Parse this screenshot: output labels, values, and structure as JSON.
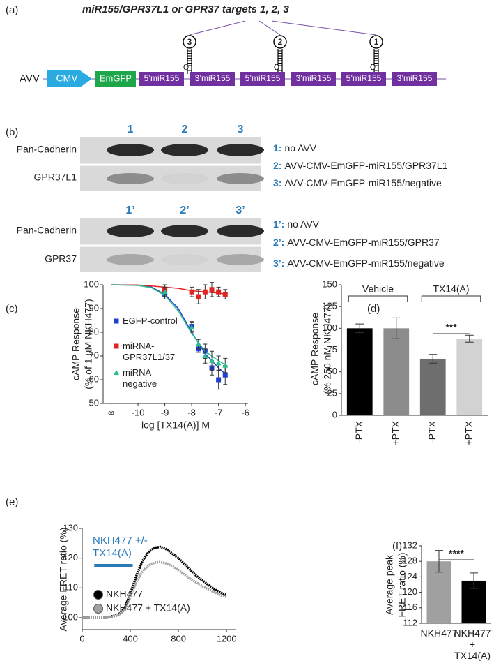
{
  "panel_labels": [
    "(a)",
    "(b)",
    "(c)",
    "(d)",
    "(e)",
    "(f)"
  ],
  "construct": {
    "title": "miR155/GPR37L1 or GPR37 targets 1, 2, 3",
    "vector": "AVV",
    "promoter": "CMV",
    "reporter": "EmGFP",
    "segments": [
      "5’miR155",
      "3’miR155",
      "5’miR155",
      "3’miR155",
      "5’miR155",
      "3’miR155"
    ],
    "targets": [
      "3",
      "2",
      "1"
    ]
  },
  "blot": {
    "top": {
      "lanes": [
        "1",
        "2",
        "3"
      ],
      "rows": [
        "Pan-Cadherin",
        "GPR37L1"
      ]
    },
    "bottom": {
      "lanes": [
        "1’",
        "2’",
        "3’"
      ],
      "rows": [
        "Pan-Cadherin",
        "GPR37"
      ]
    },
    "legend": [
      {
        "key": "1:",
        "text": "no AVV"
      },
      {
        "key": "2:",
        "text": "AVV-CMV-EmGFP-miR155/GPR37L1"
      },
      {
        "key": "3:",
        "text": "AVV-CMV-EmGFP-miR155/negative"
      },
      {
        "key": "1’:",
        "text": "no AVV"
      },
      {
        "key": "2’:",
        "text": "AVV-CMV-EmGFP-miR155/GPR37"
      },
      {
        "key": "3’:",
        "text": "AVV-CMV-EmGFP-miR155/negative"
      }
    ]
  },
  "chart_data": [
    {
      "type": "scatter",
      "y_label": [
        "cAMP Response",
        "(% of 1 µM NKH477)"
      ],
      "x_label": "log [TX14(A)] M",
      "xlim": [
        -11.3,
        -5.9
      ],
      "xticks": [
        {
          "value": -11,
          "label": "∞"
        },
        -10,
        -9,
        -8,
        -7,
        -6
      ],
      "ylim": [
        50,
        100
      ],
      "yticks": [
        50,
        60,
        70,
        80,
        90,
        100
      ],
      "x": [
        -9,
        -8,
        -7.75,
        -7.5,
        -7.25,
        -7,
        -6.75
      ],
      "series": [
        {
          "name": "EGFP-control",
          "color": "#1f3fd0",
          "marker": "square",
          "values": [
            96,
            82.5,
            73,
            72,
            65,
            60,
            62
          ],
          "errors": [
            2,
            2,
            1.5,
            3,
            3,
            4,
            4
          ],
          "fit": {
            "x": [
              -11,
              -10,
              -9.5,
              -9,
              -8.5,
              -8,
              -7.5,
              -7,
              -6.7
            ],
            "values": [
              100,
              99.8,
              99,
              96,
              90,
              80,
              71,
              65,
              62
            ]
          }
        },
        {
          "name": "miRNA-GPR37L1/37",
          "color": "#e02424",
          "marker": "square",
          "values": [
            98,
            97,
            95,
            97,
            98,
            97,
            96
          ],
          "errors": [
            2,
            2,
            3,
            3,
            3,
            2,
            2
          ],
          "fit": {
            "x": [
              -11,
              -10,
              -9.5,
              -9,
              -8.5,
              -8,
              -7.5,
              -7,
              -6.7
            ],
            "values": [
              100,
              99.9,
              99.5,
              99,
              98.5,
              97.5,
              97,
              96.5,
              96
            ]
          }
        },
        {
          "name": "miRNA-negative",
          "color": "#2bbf8c",
          "marker": "triangle",
          "values": [
            97,
            82,
            75,
            70,
            68,
            67,
            66
          ],
          "errors": [
            2,
            2,
            2,
            3,
            4,
            3,
            3
          ],
          "fit": {
            "x": [
              -11,
              -10,
              -9.5,
              -9,
              -8.5,
              -8,
              -7.5,
              -7,
              -6.7
            ],
            "values": [
              100,
              99.7,
              98.8,
              95.5,
              89,
              79.5,
              72,
              68,
              66
            ]
          }
        }
      ]
    },
    {
      "type": "bar",
      "y_label": [
        "cAMP Response",
        "(% 250 nM NKH477)"
      ],
      "ylim": [
        0,
        150
      ],
      "yticks": [
        0,
        25,
        50,
        75,
        100,
        125,
        150
      ],
      "categories": [
        "-PTX",
        "+PTX",
        "-PTX",
        "+PTX"
      ],
      "values": [
        100,
        100,
        65,
        88
      ],
      "errors": [
        5,
        12,
        5,
        4
      ],
      "colors": [
        "#000000",
        "#8c8c8c",
        "#6e6e6e",
        "#d2d2d2"
      ],
      "groups": [
        {
          "label": "Vehicle"
        },
        {
          "label": "TX14(A)"
        }
      ],
      "significance": "***"
    },
    {
      "type": "line",
      "y_label": "Average FRET ratio (%)",
      "xlim": [
        0,
        1280
      ],
      "xticks": [
        0,
        400,
        800,
        1200
      ],
      "ylim": [
        96,
        130
      ],
      "yticks": [
        100,
        110,
        120,
        130
      ],
      "x": [
        0,
        50,
        100,
        150,
        200,
        250,
        300,
        350,
        400,
        450,
        500,
        550,
        600,
        650,
        700,
        750,
        800,
        850,
        900,
        950,
        1000,
        1050,
        1100,
        1150,
        1200
      ],
      "series": [
        {
          "name": "NKH477",
          "color": "#000000",
          "values": [
            100,
            100,
            100,
            100,
            100,
            100.5,
            101,
            103,
            108,
            114,
            119,
            122,
            123.5,
            123.8,
            123,
            121.5,
            120,
            118,
            116,
            114,
            112.5,
            111,
            109.5,
            108.5,
            107.5
          ]
        },
        {
          "name": "NKH477 + TX14(A)",
          "color": "#a0a0a0",
          "values": [
            100,
            100,
            100,
            100,
            100,
            100.3,
            100.8,
            102.5,
            107,
            112,
            115.5,
            117.5,
            118.5,
            118.7,
            118.2,
            117.3,
            116,
            114.5,
            113,
            111.8,
            110.5,
            109.5,
            108.5,
            107.5,
            107
          ]
        }
      ],
      "annotation": {
        "text": "NKH477 +/- TX14(A)",
        "x_range": [
          100,
          420
        ],
        "color": "#2a7ab8"
      }
    },
    {
      "type": "bar",
      "y_label": [
        "Average peak",
        "FRET ratio (%)"
      ],
      "ylim": [
        112,
        132
      ],
      "yticks": [
        112,
        116,
        120,
        124,
        128,
        132
      ],
      "categories": [
        "NKH477",
        "NKH477 + TX14(A)"
      ],
      "values": [
        128,
        123
      ],
      "errors": [
        2.8,
        2
      ],
      "colors": [
        "#a0a0a0",
        "#000000"
      ],
      "significance": "****"
    }
  ]
}
